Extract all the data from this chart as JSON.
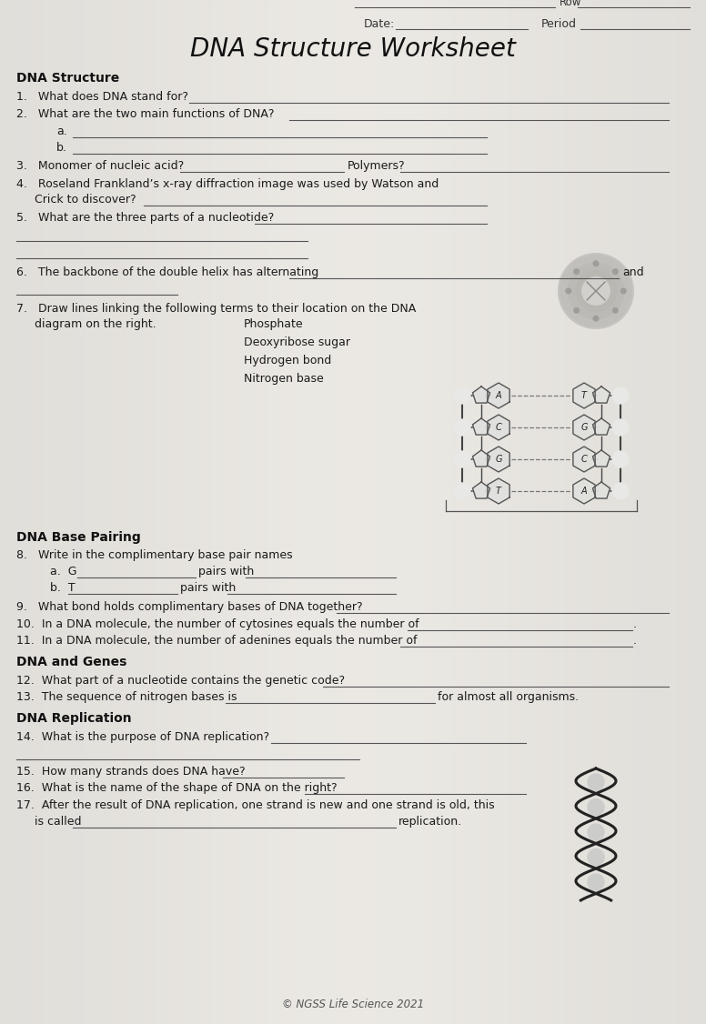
{
  "title": "DNA Structure Worksheet",
  "bg_left": "#c8c8c8",
  "bg_right": "#d8d8d8",
  "paper_color": "#e8e6e2",
  "text_color": "#1a1a1a",
  "line_color": "#555555",
  "header_row": "Row",
  "header_date": "Date:",
  "header_period": "Period",
  "section1_title": "DNA Structure",
  "q1": "1.   What does DNA stand for?",
  "q2": "2.   What are the two main functions of DNA?",
  "q2a": "a.",
  "q2b": "b.",
  "q3a": "3.   Monomer of nucleic acid?",
  "q3b": "Polymers?",
  "q4a": "4.   Roseland Frankland’s x-ray diffraction image was used by Watson and",
  "q4b": "     Crick to discover?",
  "q5": "5.   What are the three parts of a nucleotide?",
  "q6": "6.   The backbone of the double helix has alternating",
  "q6end": "and",
  "q7a": "7.   Draw lines linking the following terms to their location on the DNA",
  "q7b": "     diagram on the right.",
  "q7_phosphate": "Phosphate",
  "q7_deoxyribose": "Deoxyribose sugar",
  "q7_hydrogen": "Hydrogen bond",
  "q7_nitrogen": "Nitrogen base",
  "section2_title": "DNA Base Pairing",
  "q8": "8.   Write in the complimentary base pair names",
  "q8a_pre": "a.  G",
  "q8a_mid": "pairs with",
  "q8b_pre": "b.  T",
  "q8b_mid": "pairs with",
  "q9": "9.   What bond holds complimentary bases of DNA together?",
  "q10": "10.  In a DNA molecule, the number of cytosines equals the number of",
  "q10end": ".",
  "q11": "11.  In a DNA molecule, the number of adenines equals the number of",
  "q11end": ".",
  "section3_title": "DNA and Genes",
  "q12": "12.  What part of a nucleotide contains the genetic code?",
  "q13pre": "13.  The sequence of nitrogen bases is",
  "q13end": "for almost all organisms.",
  "section4_title": "DNA Replication",
  "q14": "14.  What is the purpose of DNA replication?",
  "q15": "15.  How many strands does DNA have?",
  "q16": "16.  What is the name of the shape of DNA on the right?",
  "q17a": "17.  After the result of DNA replication, one strand is new and one strand is old, this",
  "q17b": "     is called",
  "q17end": "replication.",
  "footer": "© NGSS Life Science 2021",
  "font_size_title": 20,
  "font_size_section": 10,
  "font_size_body": 9
}
